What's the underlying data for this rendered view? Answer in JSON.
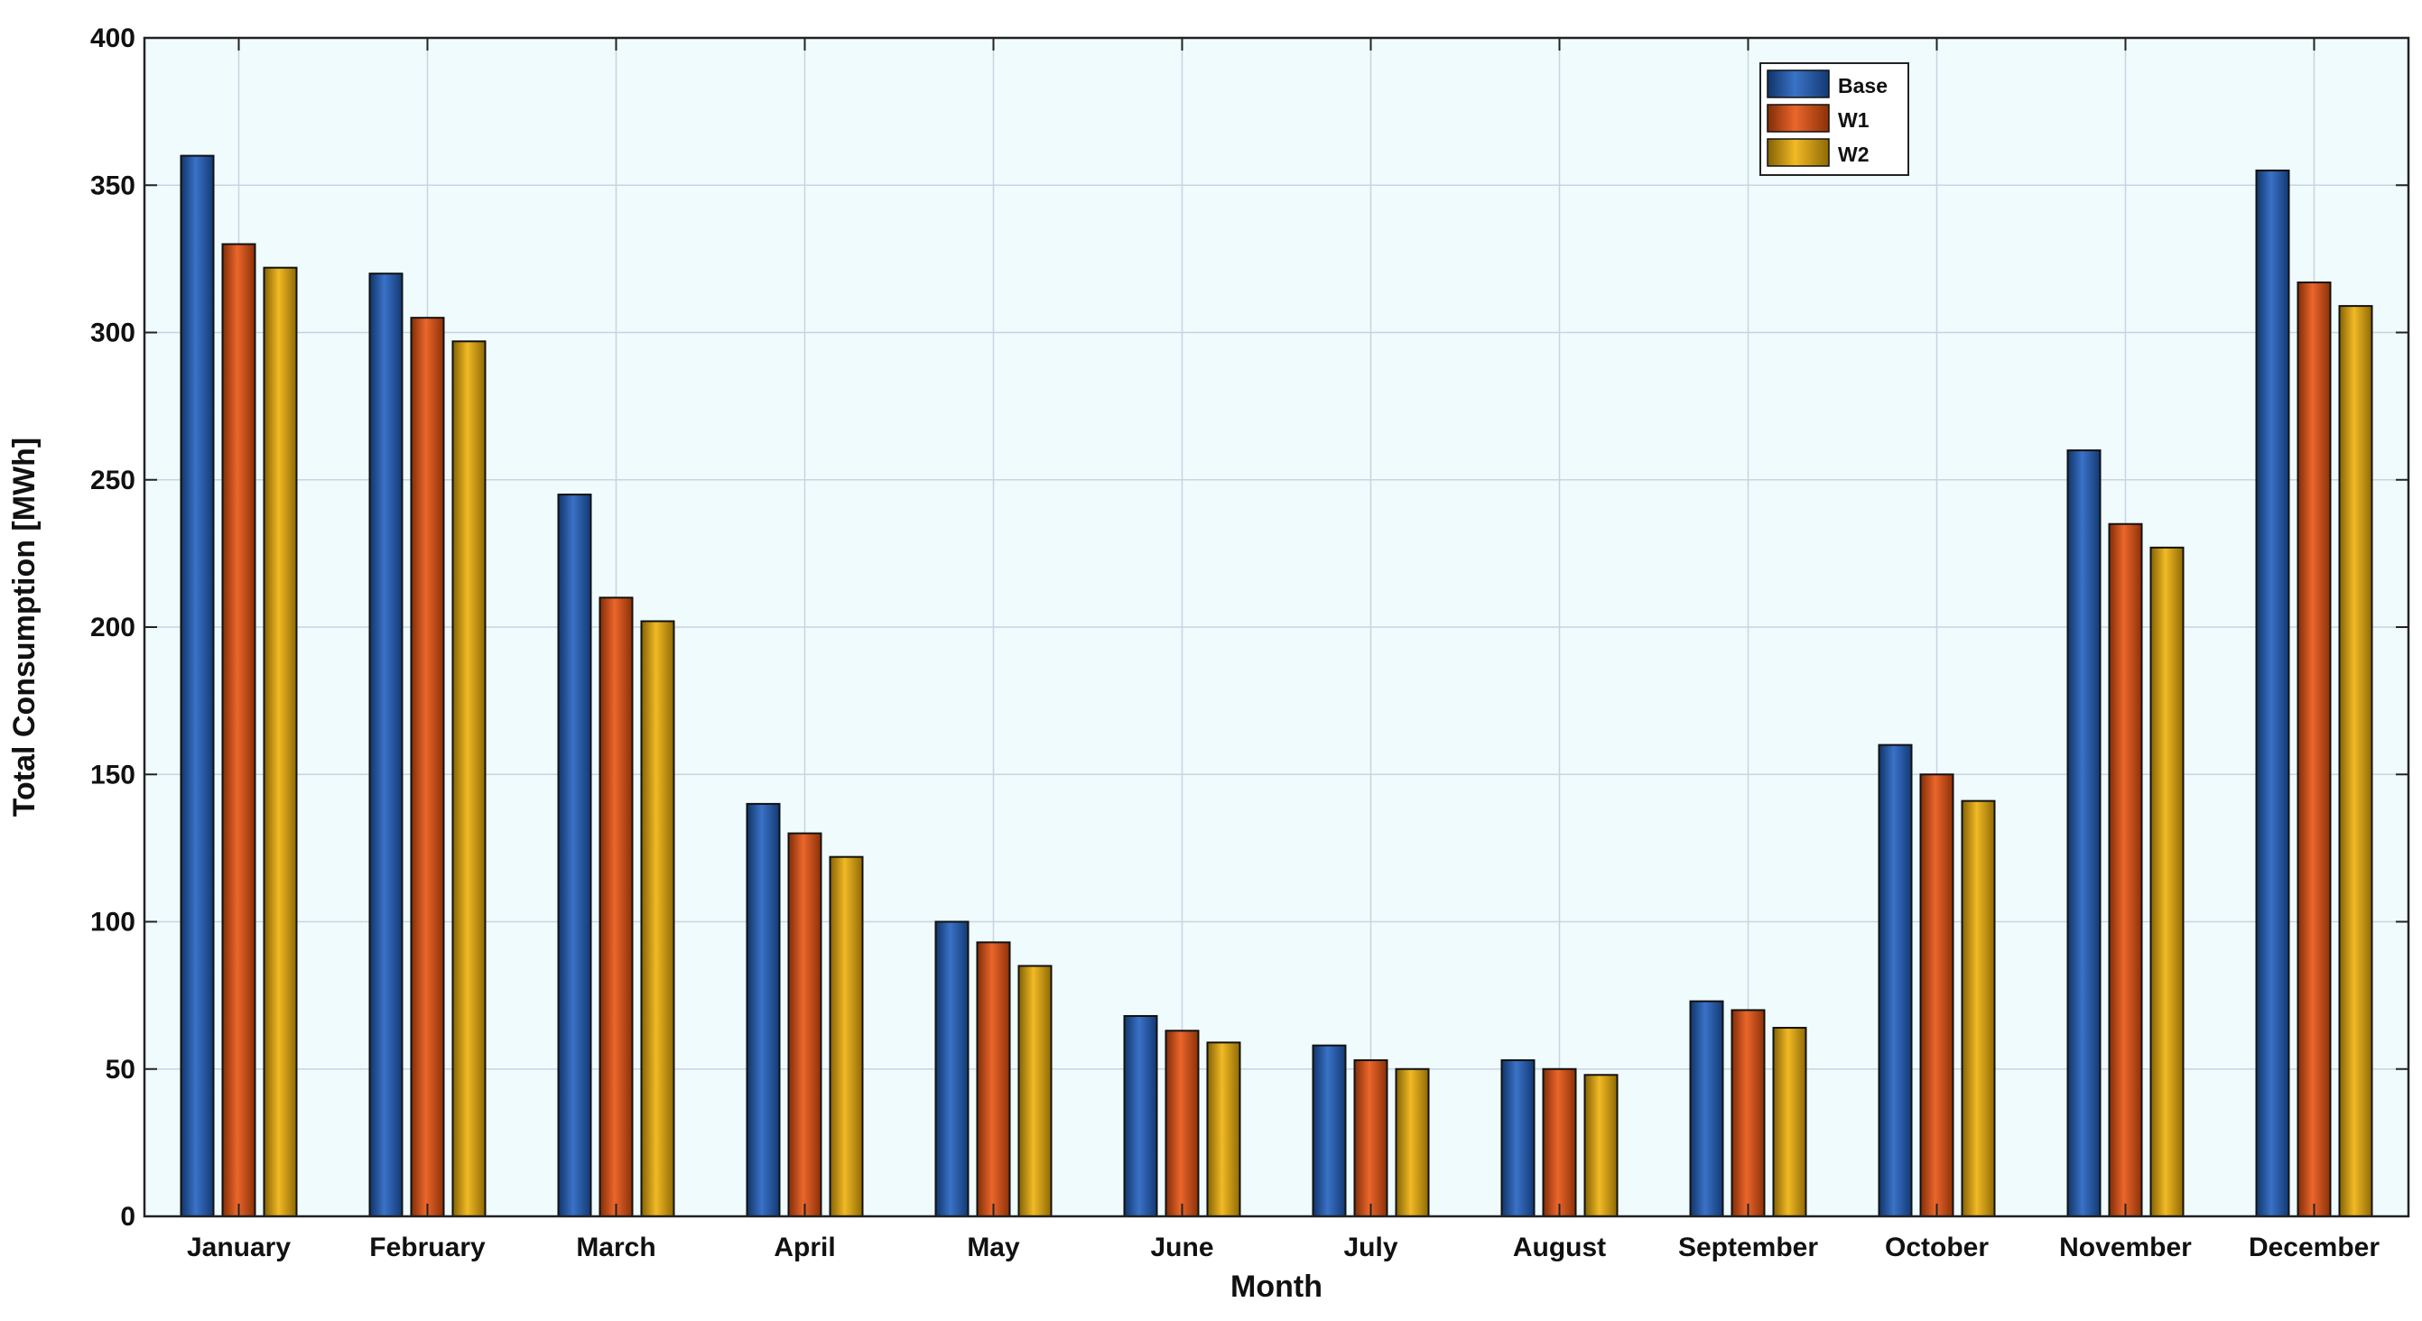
{
  "chart_data": {
    "type": "bar",
    "title": "",
    "xlabel": "Month",
    "ylabel": "Total Consumption [MWh]",
    "ylim": [
      0,
      400
    ],
    "yticks": [
      0,
      50,
      100,
      150,
      200,
      250,
      300,
      350,
      400
    ],
    "grid": true,
    "legend_position": "top-right",
    "categories": [
      "January",
      "February",
      "March",
      "April",
      "May",
      "June",
      "July",
      "August",
      "September",
      "October",
      "November",
      "December"
    ],
    "series": [
      {
        "name": "Base",
        "color": "#1f5fbf",
        "values": [
          360,
          320,
          245,
          140,
          100,
          68,
          58,
          53,
          73,
          160,
          260,
          355
        ]
      },
      {
        "name": "W1",
        "color": "#e8510e",
        "values": [
          330,
          305,
          210,
          130,
          93,
          63,
          53,
          50,
          70,
          150,
          235,
          317
        ]
      },
      {
        "name": "W2",
        "color": "#efb007",
        "values": [
          322,
          297,
          202,
          122,
          85,
          59,
          50,
          48,
          64,
          141,
          227,
          309
        ]
      }
    ]
  }
}
